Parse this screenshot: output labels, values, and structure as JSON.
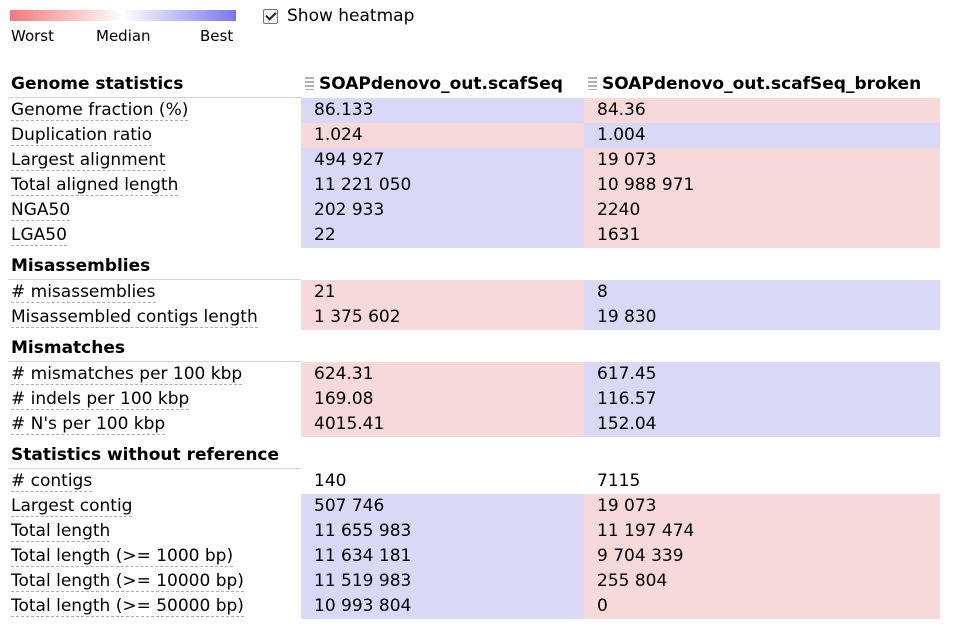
{
  "legend": {
    "worst": "Worst",
    "median": "Median",
    "best": "Best",
    "gradient": {
      "worst": "#f07a7a",
      "median": "#ffffff",
      "best": "#7777ee"
    }
  },
  "heatmap_toggle": {
    "label": "Show heatmap",
    "checked": true
  },
  "colors": {
    "best_cell": "#d9d9f7",
    "worst_cell": "#f7d9d9"
  },
  "assemblies": [
    "SOAPdenovo_out.scafSeq",
    "SOAPdenovo_out.scafSeq_broken"
  ],
  "sections": [
    {
      "title": "Genome statistics",
      "rows": [
        {
          "label": "Genome fraction (%)",
          "values": [
            "86.133",
            "84.36"
          ],
          "rank": [
            "best",
            "worst"
          ]
        },
        {
          "label": "Duplication ratio",
          "values": [
            "1.024",
            "1.004"
          ],
          "rank": [
            "worst",
            "best"
          ]
        },
        {
          "label": "Largest alignment",
          "values": [
            "494 927",
            "19 073"
          ],
          "rank": [
            "best",
            "worst"
          ]
        },
        {
          "label": "Total aligned length",
          "values": [
            "11 221 050",
            "10 988 971"
          ],
          "rank": [
            "best",
            "worst"
          ]
        },
        {
          "label": "NGA50",
          "values": [
            "202 933",
            "2240"
          ],
          "rank": [
            "best",
            "worst"
          ]
        },
        {
          "label": "LGA50",
          "values": [
            "22",
            "1631"
          ],
          "rank": [
            "best",
            "worst"
          ]
        }
      ]
    },
    {
      "title": "Misassemblies",
      "rows": [
        {
          "label": "# misassemblies",
          "values": [
            "21",
            "8"
          ],
          "rank": [
            "worst",
            "best"
          ]
        },
        {
          "label": "Misassembled contigs length",
          "values": [
            "1 375 602",
            "19 830"
          ],
          "rank": [
            "worst",
            "best"
          ]
        }
      ]
    },
    {
      "title": "Mismatches",
      "rows": [
        {
          "label": "# mismatches per 100 kbp",
          "values": [
            "624.31",
            "617.45"
          ],
          "rank": [
            "worst",
            "best"
          ]
        },
        {
          "label": "# indels per 100 kbp",
          "values": [
            "169.08",
            "116.57"
          ],
          "rank": [
            "worst",
            "best"
          ]
        },
        {
          "label": "# N's per 100 kbp",
          "values": [
            "4015.41",
            "152.04"
          ],
          "rank": [
            "worst",
            "best"
          ]
        }
      ]
    },
    {
      "title": "Statistics without reference",
      "rows": [
        {
          "label": "# contigs",
          "values": [
            "140",
            "7115"
          ],
          "rank": [
            "neutral",
            "neutral"
          ]
        },
        {
          "label": "Largest contig",
          "values": [
            "507 746",
            "19 073"
          ],
          "rank": [
            "best",
            "worst"
          ]
        },
        {
          "label": "Total length",
          "values": [
            "11 655 983",
            "11 197 474"
          ],
          "rank": [
            "best",
            "worst"
          ]
        },
        {
          "label": "Total length (>= 1000 bp)",
          "values": [
            "11 634 181",
            "9 704 339"
          ],
          "rank": [
            "best",
            "worst"
          ]
        },
        {
          "label": "Total length (>= 10000 bp)",
          "values": [
            "11 519 983",
            "255 804"
          ],
          "rank": [
            "best",
            "worst"
          ]
        },
        {
          "label": "Total length (>= 50000 bp)",
          "values": [
            "10 993 804",
            "0"
          ],
          "rank": [
            "best",
            "worst"
          ]
        }
      ]
    }
  ]
}
